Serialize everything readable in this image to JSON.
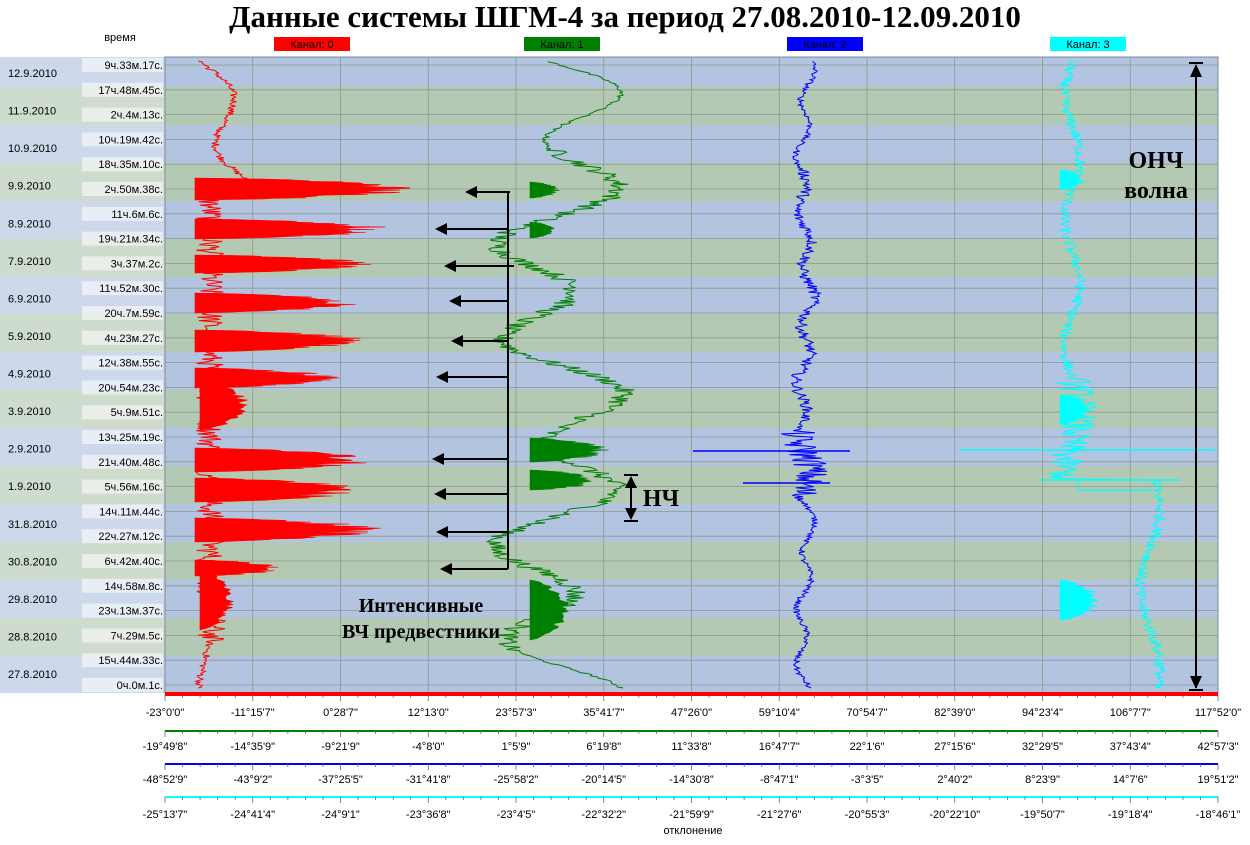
{
  "title": "Данные системы ШГМ-4 за период 27.08.2010-12.09.2010",
  "chart_data": {
    "type": "line",
    "time_axis_label": "время",
    "deviation_axis_label": "отклонение",
    "date_labels": [
      "12.9.2010",
      "11.9.2010",
      "10.9.2010",
      "9.9.2010",
      "8.9.2010",
      "7.9.2010",
      "6.9.2010",
      "5.9.2010",
      "4.9.2010",
      "3.9.2010",
      "2.9.2010",
      "1.9.2010",
      "31.8.2010",
      "30.8.2010",
      "29.8.2010",
      "28.8.2010",
      "27.8.2010"
    ],
    "time_labels": [
      "9ч.33м.17с.",
      "17ч.48м.45с.",
      "2ч.4м.13с.",
      "10ч.19м.42с.",
      "18ч.35м.10с.",
      "2ч.50м.38с.",
      "11ч.6м.6с.",
      "19ч.21м.34с.",
      "3ч.37м.2с.",
      "11ч.52м.30с.",
      "20ч.7м.59с.",
      "4ч.23м.27с.",
      "12ч.38м.55с.",
      "20ч.54м.23с.",
      "5ч.9м.51с.",
      "13ч.25м.19с.",
      "21ч.40м.48с.",
      "5ч.56м.16с.",
      "14ч.11м.44с.",
      "22ч.27м.12с.",
      "6ч.42м.40с.",
      "14ч.58м.8с.",
      "23ч.13м.37с.",
      "7ч.29м.5с.",
      "15ч.44м.33с.",
      "0ч.0м.1с."
    ],
    "channels": [
      {
        "name": "Канал: 0",
        "color": "#ff0000",
        "ticks": [
          "-23°0'0\"",
          "-11°15'7\"",
          "0°28'7\"",
          "12°13'0\"",
          "23°57'3\"",
          "35°41'7\"",
          "47°26'0\"",
          "59°10'4\"",
          "70°54'7\"",
          "82°39'0\"",
          "94°23'4\"",
          "106°7'7\"",
          "117°52'0\""
        ]
      },
      {
        "name": "Канал: 1",
        "color": "#008000",
        "ticks": [
          "-19°49'8\"",
          "-14°35'9\"",
          "-9°21'9\"",
          "-4°8'0\"",
          "1°5'9\"",
          "6°19'8\"",
          "11°33'8\"",
          "16°47'7\"",
          "22°1'6\"",
          "27°15'6\"",
          "32°29'5\"",
          "37°43'4\"",
          "42°57'3\""
        ]
      },
      {
        "name": "Канал: 2",
        "color": "#0000ff",
        "ticks": [
          "-48°52'9\"",
          "-43°9'2\"",
          "-37°25'5\"",
          "-31°41'8\"",
          "-25°58'2\"",
          "-20°14'5\"",
          "-14°30'8\"",
          "-8°47'1\"",
          "-3°3'5\"",
          "2°40'2\"",
          "8°23'9\"",
          "14°7'6\"",
          "19°51'2\""
        ]
      },
      {
        "name": "Канал: 3",
        "color": "#00ffff",
        "ticks": [
          "-25°13'7\"",
          "-24°41'4\"",
          "-24°9'1\"",
          "-23°36'8\"",
          "-23°4'5\"",
          "-22°32'2\"",
          "-21°59'9\"",
          "-21°27'6\"",
          "-20°55'3\"",
          "-20°22'10\"",
          "-19°50'7\"",
          "-19°18'4\"",
          "-18°46'1\""
        ]
      }
    ],
    "annotations": {
      "hf_label_line1": "Интенсивные",
      "hf_label_line2": "ВЧ предвестники",
      "lf_label": "НЧ",
      "ulf_label_line1": "ОНЧ",
      "ulf_label_line2": "волна"
    }
  }
}
